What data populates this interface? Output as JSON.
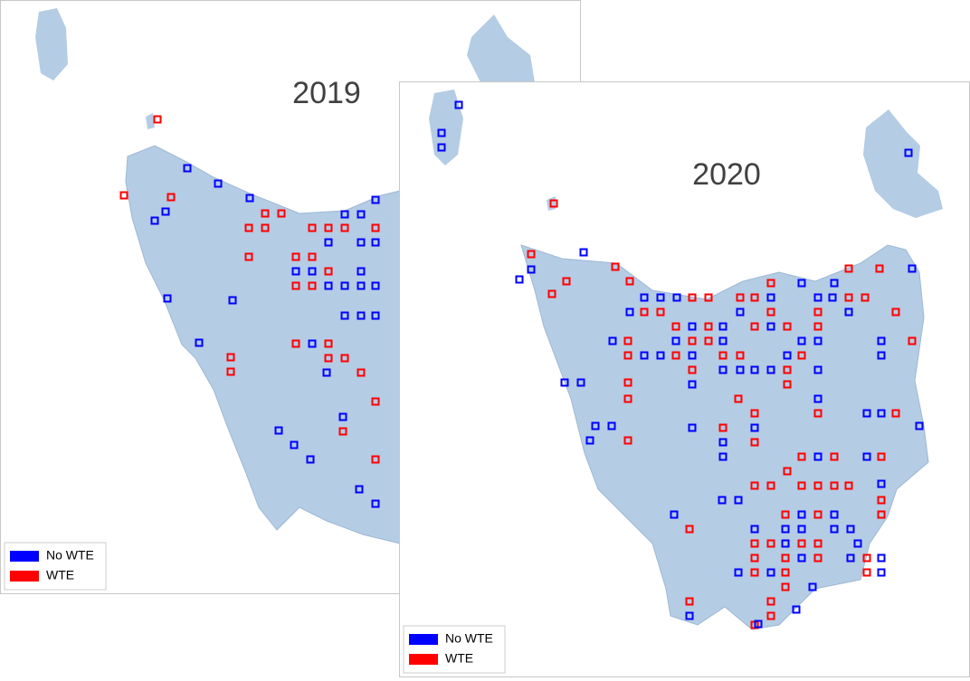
{
  "panels": [
    {
      "title": "2019",
      "legend": [
        {
          "label": "No WTE",
          "color": "#0000ff"
        },
        {
          "label": "WTE",
          "color": "#ff0000"
        }
      ]
    },
    {
      "title": "2020",
      "legend": [
        {
          "label": "No WTE",
          "color": "#0000ff"
        },
        {
          "label": "WTE",
          "color": "#ff0000"
        }
      ]
    }
  ]
}
